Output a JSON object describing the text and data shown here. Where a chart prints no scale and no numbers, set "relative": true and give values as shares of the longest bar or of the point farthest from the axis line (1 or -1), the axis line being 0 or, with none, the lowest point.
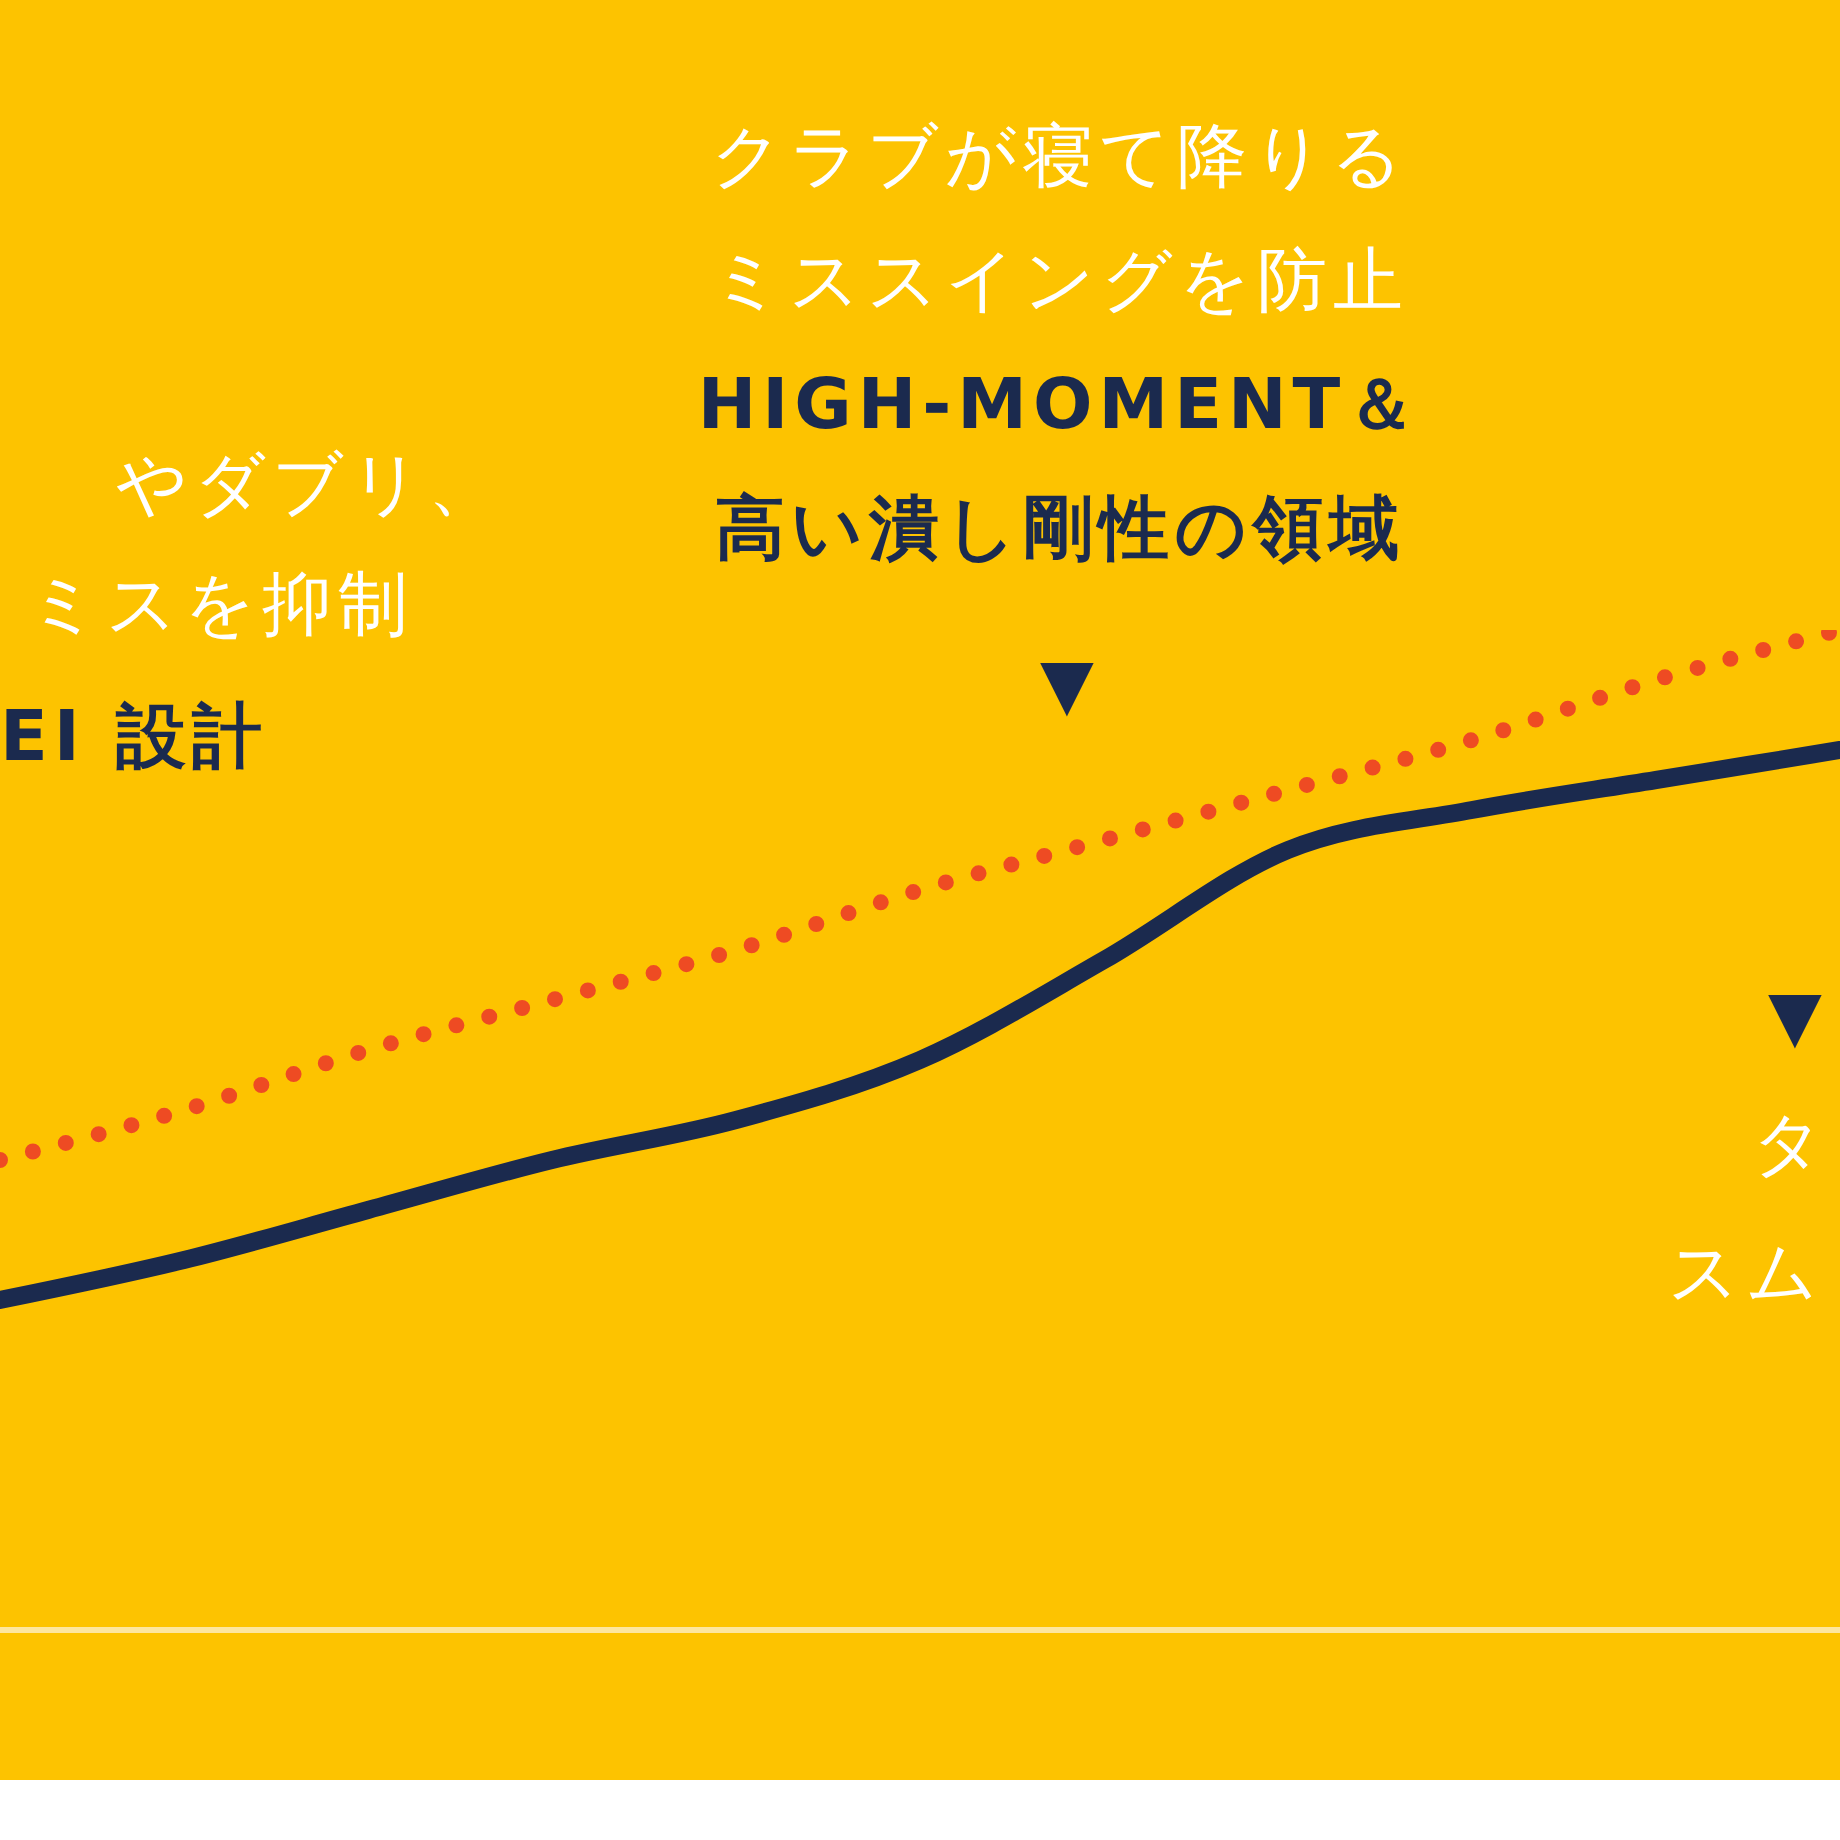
{
  "chart_data": {
    "type": "line",
    "relative": true,
    "categories": [
      null,
      null,
      null,
      null,
      null,
      null,
      null,
      null,
      null,
      null,
      null
    ],
    "series": [
      {
        "color": "#1b2a4e",
        "line_style": "solid",
        "values": [
          0.33,
          0.37,
          0.42,
          0.47,
          0.51,
          0.57,
          0.67,
          0.78,
          0.82,
          0.85,
          0.88
        ]
      },
      {
        "color": "#ee4b23",
        "line_style": "dotted",
        "values": [
          0.47,
          0.52,
          0.58,
          0.63,
          0.68,
          0.74,
          0.79,
          0.84,
          0.89,
          0.95,
          1.0
        ]
      }
    ],
    "tick_labels": false,
    "annotations": [
      "クラブが寝て降りる",
      "ミススイングを防止",
      "HIGH-MOMENT＆",
      "高い潰し剛性の領域",
      "▼",
      "やダブリ、",
      "ミスを抑制",
      "EI 設計",
      "▼",
      "タ",
      "スム"
    ],
    "grid": false,
    "legend": false,
    "marker": "none"
  }
}
